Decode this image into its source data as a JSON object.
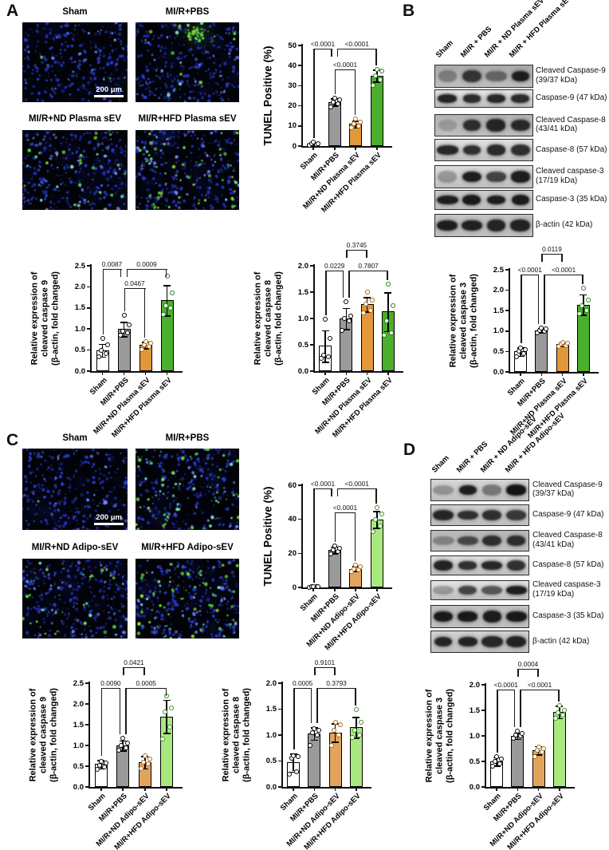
{
  "panel_letters": {
    "A": "A",
    "B": "B",
    "C": "C",
    "D": "D"
  },
  "microscopy_panels": [
    {
      "id": "A",
      "images": [
        {
          "label": "Sham",
          "scale_bar": "200 μm",
          "stain": "none"
        },
        {
          "label": "MI/R+PBS",
          "stain": "topcluster"
        },
        {
          "label": "MI/R+ND Plasma sEV",
          "stain": "scatter"
        },
        {
          "label": "MI/R+HFD Plasma sEV",
          "stain": "dense"
        }
      ]
    },
    {
      "id": "C",
      "images": [
        {
          "label": "Sham",
          "scale_bar": "200 μm",
          "stain": "none"
        },
        {
          "label": "MI/R+PBS",
          "stain": "dense"
        },
        {
          "label": "MI/R+ND Adipo-sEV",
          "stain": "scatter"
        },
        {
          "label": "MI/R+HFD Adipo-sEV",
          "stain": "dense"
        }
      ]
    }
  ],
  "blot_panels": [
    {
      "id": "B",
      "lanes": [
        "Sham",
        "MI/R + PBS",
        "MI/R + ND Plasma sEV",
        "MI/R + HFD Plasma sEV"
      ],
      "rows": [
        {
          "label": "Cleaved Caspase-9",
          "label2": "(39/37 kDa)",
          "bg": "#a9a9a9",
          "intensities": [
            0.35,
            0.8,
            0.5,
            0.95
          ]
        },
        {
          "label": "Caspase-9 (47 kDa)",
          "bg": "#e6e6e6",
          "intensities": [
            0.92,
            0.88,
            0.9,
            0.88
          ]
        },
        {
          "label": "Cleaved Caspase-8",
          "label2": "(43/41 kDa)",
          "bg": "#b2b2b2",
          "intensities": [
            0.2,
            0.85,
            0.9,
            0.88
          ]
        },
        {
          "label": "Caspase-8 (57 kDa)",
          "bg": "#e2e2e2",
          "intensities": [
            0.9,
            0.85,
            0.88,
            0.86
          ]
        },
        {
          "label": "Cleaved caspase-3",
          "label2": "(17/19 kDa)",
          "bg": "#dcdcdc",
          "intensities": [
            0.3,
            0.95,
            0.75,
            0.95
          ]
        },
        {
          "label": "Caspase-3 (35 kDa)",
          "bg": "#cccccc",
          "intensities": [
            0.95,
            0.97,
            0.95,
            0.96
          ]
        },
        {
          "label": "β-actin (42 kDa)",
          "bg": "#c4c4c4",
          "intensities": [
            0.95,
            0.93,
            0.9,
            0.92
          ]
        }
      ]
    },
    {
      "id": "D",
      "lanes": [
        "Sham",
        "MI/R + PBS",
        "MI/R + ND Adipo-sEV",
        "MI/R + HFD Adipo-sEV"
      ],
      "rows": [
        {
          "label": "Cleaved Caspase-9",
          "label2": "(39/37 kDa)",
          "bg": "#d6d6d6",
          "intensities": [
            0.3,
            0.95,
            0.45,
            1.0
          ]
        },
        {
          "label": "Caspase-9 (47 kDa)",
          "bg": "#cfcfcf",
          "intensities": [
            0.9,
            0.85,
            0.85,
            0.8
          ]
        },
        {
          "label": "Cleaved Caspase-8",
          "label2": "(43/41 kDa)",
          "bg": "#b8b8b8",
          "intensities": [
            0.35,
            0.7,
            0.85,
            0.85
          ]
        },
        {
          "label": "Caspase-8 (57 kDa)",
          "bg": "#e0e0e0",
          "intensities": [
            0.92,
            0.85,
            0.9,
            0.85
          ]
        },
        {
          "label": "Cleaved caspase-3",
          "label2": "(17/19 kDa)",
          "bg": "#e4e4e4",
          "intensities": [
            0.3,
            0.75,
            0.65,
            0.95
          ]
        },
        {
          "label": "Caspase-3 (35 kDa)",
          "bg": "#c0c0c0",
          "intensities": [
            0.97,
            0.97,
            0.95,
            0.97
          ]
        },
        {
          "label": "β-actin (42 kDa)",
          "bg": "#d2d2d2",
          "intensities": [
            0.9,
            0.92,
            0.9,
            0.92
          ]
        }
      ]
    }
  ],
  "chart_data": [
    {
      "id": "aTunel",
      "type": "bar",
      "ylabel_lines": [
        "TUNEL Positive (%)"
      ],
      "categories": [
        "Sham",
        "MI/R+PBS",
        "MI/R+ND Plasma sEV",
        "MI/R+HFD Plasma sEV"
      ],
      "values": [
        1,
        22,
        11,
        35
      ],
      "errors": [
        0.6,
        1.8,
        1.7,
        3
      ],
      "points": [
        [
          0.4,
          0.7,
          1,
          1.3,
          1.8
        ],
        [
          19.5,
          21,
          22,
          23,
          24
        ],
        [
          9,
          10,
          11,
          12,
          13.5
        ],
        [
          30,
          33,
          35,
          37.5,
          38
        ]
      ],
      "ylim": [
        0,
        50
      ],
      "yticks": [
        0,
        10,
        20,
        30,
        40,
        50
      ],
      "decimals": 0,
      "bar_colors": [
        "#FFFFFF",
        "#9A9A9A",
        "#E2973B",
        "#4CAF2C"
      ],
      "dot_ring_colors": [
        "#000000",
        "#000000",
        "#A86A1C",
        "#2E7D1E"
      ],
      "brackets": [
        {
          "a": 0,
          "b": 1,
          "label": "<0.0001",
          "dy": 4,
          "da": "bar",
          "db": "short",
          "oa": 0,
          "ob": -3
        },
        {
          "a": 1,
          "b": 3,
          "label": "<0.0001",
          "dy": 4,
          "da": "short",
          "db": "bar",
          "oa": 3,
          "ob": 0
        },
        {
          "a": 1,
          "b": 2,
          "label": "<0.0001",
          "dy": 30,
          "da": "bar",
          "db": "bar",
          "oa": 0,
          "ob": 0
        }
      ]
    },
    {
      "id": "aC9",
      "type": "bar",
      "ylabel_lines": [
        "Relative expression of",
        "cleaved caspase 9",
        "(β-actin, fold changed)"
      ],
      "categories": [
        "Sham",
        "MI/R+PBS",
        "MI/R+ND Plasma sEV",
        "MI/R+HFD Plasma sEV"
      ],
      "values": [
        0.5,
        1.0,
        0.62,
        1.68
      ],
      "errors": [
        0.15,
        0.17,
        0.08,
        0.36
      ],
      "points": [
        [
          0.35,
          0.42,
          0.5,
          0.62,
          0.78
        ],
        [
          0.85,
          0.9,
          0.95,
          1.1,
          1.32
        ],
        [
          0.52,
          0.58,
          0.62,
          0.66,
          0.7
        ],
        [
          1.35,
          1.5,
          1.55,
          1.85,
          2.25
        ]
      ],
      "ylim": [
        0,
        2.5
      ],
      "yticks": [
        0,
        0.5,
        1.0,
        1.5,
        2.0,
        2.5
      ],
      "decimals": 1,
      "bar_colors": [
        "#FFFFFF",
        "#9A9A9A",
        "#E2973B",
        "#4CAF2C"
      ],
      "dot_ring_colors": [
        "#000000",
        "#000000",
        "#A86A1C",
        "#2E7D1E"
      ],
      "brackets": [
        {
          "a": 0,
          "b": 1,
          "label": "0.0087",
          "dy": 4,
          "da": "bar",
          "db": "short",
          "oa": 0,
          "ob": -3
        },
        {
          "a": 1,
          "b": 3,
          "label": "0.0009",
          "dy": 4,
          "da": "short",
          "db": "bar",
          "oa": 3,
          "ob": 0
        },
        {
          "a": 1,
          "b": 2,
          "label": "0.0467",
          "dy": 28,
          "da": "bar",
          "db": "bar",
          "oa": 0,
          "ob": 0
        }
      ]
    },
    {
      "id": "aC8",
      "type": "bar",
      "ylabel_lines": [
        "Relative expression of",
        "cleaved caspase 8",
        "(β-actin, fold changed)"
      ],
      "categories": [
        "Sham",
        "MI/R+PBS",
        "MI/R+ND Plasma sEV",
        "MI/R+HFD Plasma sEV"
      ],
      "values": [
        0.48,
        1.0,
        1.27,
        1.13
      ],
      "errors": [
        0.3,
        0.2,
        0.14,
        0.37
      ],
      "points": [
        [
          0.25,
          0.28,
          0.3,
          0.62,
          0.98
        ],
        [
          0.78,
          0.95,
          1.0,
          1.05,
          1.32
        ],
        [
          1.1,
          1.15,
          1.28,
          1.35,
          1.5
        ],
        [
          0.68,
          0.72,
          0.95,
          1.25,
          1.65
        ]
      ],
      "ylim": [
        0,
        2.0
      ],
      "yticks": [
        0,
        0.5,
        1.0,
        1.5,
        2.0
      ],
      "decimals": 1,
      "bar_colors": [
        "#FFFFFF",
        "#9A9A9A",
        "#E2973B",
        "#4CAF2C"
      ],
      "dot_ring_colors": [
        "#000000",
        "#000000",
        "#A86A1C",
        "#2E7D1E"
      ],
      "brackets": [
        {
          "a": 0,
          "b": 1,
          "label": "0.0229",
          "dy": 6,
          "da": "bar",
          "db": "bar",
          "oa": 0,
          "ob": -3
        },
        {
          "a": 1,
          "b": 2,
          "label": "0.3745",
          "dy": -20,
          "da": "short",
          "db": "short",
          "oa": 0,
          "ob": 0
        },
        {
          "a": 1,
          "b": 3,
          "label": "0.7807",
          "dy": 6,
          "da": "bar",
          "db": "bar",
          "oa": 3,
          "ob": 0
        }
      ]
    },
    {
      "id": "bC3",
      "type": "bar",
      "ylabel_lines": [
        "Relative expression of",
        "cleaved caspase 3",
        "(β-actin, fold changed)"
      ],
      "categories": [
        "Sham",
        "MI/R+PBS",
        "MI/R+ND Plasma sEV",
        "MI/R+HFD Plasma sEV"
      ],
      "values": [
        0.5,
        1.02,
        0.68,
        1.65
      ],
      "errors": [
        0.1,
        0.05,
        0.05,
        0.25
      ],
      "points": [
        [
          0.38,
          0.45,
          0.5,
          0.55,
          0.58
        ],
        [
          0.95,
          1.0,
          1.02,
          1.05,
          1.08
        ],
        [
          0.62,
          0.65,
          0.68,
          0.7,
          0.73
        ],
        [
          1.42,
          1.5,
          1.62,
          1.75,
          2.05
        ]
      ],
      "ylim": [
        0,
        2.5
      ],
      "yticks": [
        0,
        0.5,
        1.0,
        1.5,
        2.0,
        2.5
      ],
      "decimals": 1,
      "bar_colors": [
        "#FFFFFF",
        "#9A9A9A",
        "#E2973B",
        "#4CAF2C"
      ],
      "dot_ring_colors": [
        "#000000",
        "#000000",
        "#A86A1C",
        "#2E7D1E"
      ],
      "brackets": [
        {
          "a": 0,
          "b": 1,
          "label": "<0.0001",
          "dy": 6,
          "da": "bar",
          "db": "bar",
          "oa": 0,
          "ob": -3
        },
        {
          "a": 1,
          "b": 2,
          "label": "0.0119",
          "dy": -20,
          "da": "short",
          "db": "short",
          "oa": 0,
          "ob": 0
        },
        {
          "a": 1,
          "b": 3,
          "label": "<0.0001",
          "dy": 6,
          "da": "bar",
          "db": "bar",
          "oa": 3,
          "ob": 0
        }
      ]
    },
    {
      "id": "cTunel",
      "type": "bar",
      "ylabel_lines": [
        "TUNEL Positive (%)"
      ],
      "categories": [
        "Sham",
        "MI/R+PBS",
        "MI/R+ND Adipo-sEV",
        "MI/R+HFD Adipo-sEV"
      ],
      "values": [
        0.4,
        22,
        11,
        40
      ],
      "errors": [
        0.3,
        2,
        1.5,
        5
      ],
      "points": [
        [
          0.1,
          0.25,
          0.4,
          0.55,
          0.7
        ],
        [
          19.5,
          21,
          22,
          23,
          24.5
        ],
        [
          9.5,
          10.5,
          11,
          12,
          13
        ],
        [
          33,
          36,
          40,
          43,
          47
        ]
      ],
      "ylim": [
        0,
        60
      ],
      "yticks": [
        0,
        20,
        40,
        60
      ],
      "decimals": 0,
      "bar_colors": [
        "#FFFFFF",
        "#9A9A9A",
        "#E2A45C",
        "#A9E87E"
      ],
      "dot_ring_colors": [
        "#000000",
        "#000000",
        "#A86A1C",
        "#3F8F2A"
      ],
      "brackets": [
        {
          "a": 0,
          "b": 1,
          "label": "<0.0001",
          "dy": 4,
          "da": "bar",
          "db": "short",
          "oa": 0,
          "ob": -3
        },
        {
          "a": 1,
          "b": 3,
          "label": "<0.0001",
          "dy": 4,
          "da": "short",
          "db": "bar",
          "oa": 3,
          "ob": 0
        },
        {
          "a": 1,
          "b": 2,
          "label": "<0.0001",
          "dy": 34,
          "da": "bar",
          "db": "bar",
          "oa": 0,
          "ob": 0
        }
      ]
    },
    {
      "id": "cC9",
      "type": "bar",
      "ylabel_lines": [
        "Relative expression of",
        "cleaved caspase 9",
        "(β-actin, fold changed)"
      ],
      "categories": [
        "Sham",
        "MI/R+PBS",
        "MI/R+ND Adipo-sEV",
        "MI/R+HFD Adipo-sEV"
      ],
      "values": [
        0.55,
        1.0,
        0.6,
        1.7
      ],
      "errors": [
        0.1,
        0.12,
        0.15,
        0.4
      ],
      "points": [
        [
          0.42,
          0.48,
          0.52,
          0.58,
          0.62
        ],
        [
          0.88,
          0.95,
          1.0,
          1.05,
          1.18
        ],
        [
          0.45,
          0.55,
          0.6,
          0.68,
          0.75
        ],
        [
          1.15,
          1.45,
          1.8,
          1.9,
          2.2
        ]
      ],
      "ylim": [
        0,
        2.5
      ],
      "yticks": [
        0,
        0.5,
        1.0,
        1.5,
        2.0,
        2.5
      ],
      "decimals": 1,
      "bar_colors": [
        "#FFFFFF",
        "#9A9A9A",
        "#E2A45C",
        "#A9E87E"
      ],
      "dot_ring_colors": [
        "#000000",
        "#000000",
        "#A86A1C",
        "#3F8F2A"
      ],
      "brackets": [
        {
          "a": 0,
          "b": 1,
          "label": "0.0090",
          "dy": 6,
          "da": "bar",
          "db": "bar",
          "oa": 0,
          "ob": -3
        },
        {
          "a": 1,
          "b": 2,
          "label": "0.0421",
          "dy": -20,
          "da": "short",
          "db": "short",
          "oa": 0,
          "ob": 0
        },
        {
          "a": 1,
          "b": 3,
          "label": "0.0005",
          "dy": 6,
          "da": "bar",
          "db": "bar",
          "oa": 3,
          "ob": 0
        }
      ]
    },
    {
      "id": "cC8",
      "type": "bar",
      "ylabel_lines": [
        "Relative expression of",
        "cleaved caspase 8",
        "(β-actin, fold changed)"
      ],
      "categories": [
        "Sham",
        "MI/R+PBS",
        "MI/R+ND Adipo-sEV",
        "MI/R+HFD Adipo-sEV"
      ],
      "values": [
        0.47,
        1.03,
        1.05,
        1.15
      ],
      "errors": [
        0.17,
        0.12,
        0.18,
        0.2
      ],
      "points": [
        [
          0.25,
          0.3,
          0.55,
          0.58,
          0.6
        ],
        [
          0.8,
          1.0,
          1.05,
          1.1,
          1.12
        ],
        [
          0.8,
          1.0,
          1.1,
          1.2,
          1.25
        ],
        [
          0.95,
          1.0,
          1.1,
          1.25,
          1.5
        ]
      ],
      "ylim": [
        0,
        2.0
      ],
      "yticks": [
        0,
        0.5,
        1.0,
        1.5,
        2.0
      ],
      "decimals": 1,
      "bar_colors": [
        "#FFFFFF",
        "#9A9A9A",
        "#E2A45C",
        "#A9E87E"
      ],
      "dot_ring_colors": [
        "#000000",
        "#000000",
        "#A86A1C",
        "#3F8F2A"
      ],
      "brackets": [
        {
          "a": 0,
          "b": 1,
          "label": "0.0005",
          "dy": 6,
          "da": "bar",
          "db": "bar",
          "oa": 0,
          "ob": -3
        },
        {
          "a": 1,
          "b": 2,
          "label": "0.9101",
          "dy": -20,
          "da": "short",
          "db": "short",
          "oa": 0,
          "ob": 0
        },
        {
          "a": 1,
          "b": 3,
          "label": "0.3793",
          "dy": 6,
          "da": "bar",
          "db": "bar",
          "oa": 3,
          "ob": 0
        }
      ]
    },
    {
      "id": "dC3",
      "type": "bar",
      "ylabel_lines": [
        "Relative expression of",
        "cleaved caspase 3",
        "(β-actin, fold changed)"
      ],
      "categories": [
        "Sham",
        "MI/R+PBS",
        "MI/R+ND Adipo-sEV",
        "MI/R+HFD Adipo-sEV"
      ],
      "values": [
        0.5,
        1.0,
        0.72,
        1.47
      ],
      "errors": [
        0.08,
        0.06,
        0.08,
        0.12
      ],
      "points": [
        [
          0.4,
          0.45,
          0.5,
          0.55,
          0.6
        ],
        [
          0.95,
          1.0,
          1.02,
          1.05,
          1.1
        ],
        [
          0.6,
          0.68,
          0.72,
          0.75,
          0.78
        ],
        [
          1.35,
          1.4,
          1.45,
          1.5,
          1.6
        ]
      ],
      "ylim": [
        0,
        2.0
      ],
      "yticks": [
        0,
        0.5,
        1.0,
        1.5,
        2.0
      ],
      "decimals": 1,
      "bar_colors": [
        "#FFFFFF",
        "#9A9A9A",
        "#E2A45C",
        "#A9E87E"
      ],
      "dot_ring_colors": [
        "#000000",
        "#000000",
        "#A86A1C",
        "#3F8F2A"
      ],
      "brackets": [
        {
          "a": 0,
          "b": 1,
          "label": "<0.0001",
          "dy": 6,
          "da": "bar",
          "db": "bar",
          "oa": 0,
          "ob": -3
        },
        {
          "a": 1,
          "b": 2,
          "label": "0.0004",
          "dy": -20,
          "da": "short",
          "db": "short",
          "oa": 0,
          "ob": 0
        },
        {
          "a": 1,
          "b": 3,
          "label": "<0.0001",
          "dy": 6,
          "da": "bar",
          "db": "bar",
          "oa": 3,
          "ob": 0
        }
      ]
    }
  ]
}
